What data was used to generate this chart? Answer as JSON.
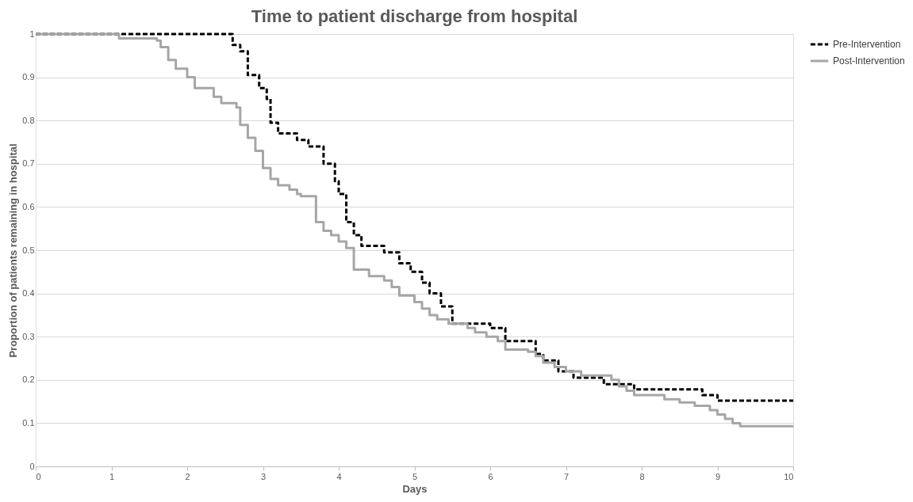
{
  "chart_data": {
    "type": "step",
    "title": "Time to patient discharge from hospital",
    "xlabel": "Days",
    "ylabel": "Proportion of patients remaining in hospital",
    "xlim": [
      0,
      10
    ],
    "xticks": [
      0,
      1,
      2,
      3,
      4,
      5,
      6,
      7,
      8,
      9,
      10
    ],
    "ylim": [
      0,
      1
    ],
    "yticks": [
      0,
      0.1,
      0.2,
      0.3,
      0.4,
      0.5,
      0.6,
      0.7,
      0.8,
      0.9,
      1
    ],
    "grid": "y",
    "legend": "right",
    "marker": "none",
    "series": [
      {
        "name": "Pre-Intervention",
        "color": "#000000",
        "line_style": "dashed",
        "x": [
          0,
          2.6,
          2.7,
          2.8,
          2.95,
          3.05,
          3.1,
          3.2,
          3.45,
          3.6,
          3.8,
          3.95,
          4.0,
          4.1,
          4.2,
          4.3,
          4.6,
          4.8,
          4.95,
          5.1,
          5.2,
          5.35,
          5.5,
          6.0,
          6.2,
          6.6,
          6.7,
          6.9,
          7.1,
          7.5,
          7.9,
          8.8,
          9.0,
          10
        ],
        "values": [
          1,
          0.975,
          0.96,
          0.905,
          0.875,
          0.85,
          0.795,
          0.77,
          0.755,
          0.74,
          0.7,
          0.66,
          0.63,
          0.565,
          0.535,
          0.51,
          0.495,
          0.47,
          0.45,
          0.425,
          0.4,
          0.37,
          0.33,
          0.32,
          0.29,
          0.26,
          0.245,
          0.22,
          0.205,
          0.19,
          0.178,
          0.165,
          0.152,
          0.152
        ]
      },
      {
        "name": "Post-Intervention",
        "color": "#a6a6a6",
        "line_style": "solid",
        "x": [
          0,
          1.1,
          1.6,
          1.65,
          1.75,
          1.85,
          2.0,
          2.1,
          2.35,
          2.45,
          2.65,
          2.7,
          2.8,
          2.9,
          3.0,
          3.1,
          3.2,
          3.35,
          3.45,
          3.5,
          3.7,
          3.8,
          3.9,
          4.0,
          4.1,
          4.2,
          4.4,
          4.6,
          4.7,
          4.8,
          5.0,
          5.1,
          5.2,
          5.3,
          5.45,
          5.7,
          5.8,
          5.95,
          6.1,
          6.2,
          6.5,
          6.6,
          6.7,
          6.85,
          7.0,
          7.2,
          7.6,
          7.7,
          7.8,
          7.9,
          8.3,
          8.5,
          8.7,
          8.9,
          9.0,
          9.1,
          9.2,
          9.3,
          10
        ],
        "values": [
          1,
          0.99,
          0.985,
          0.97,
          0.94,
          0.92,
          0.9,
          0.875,
          0.855,
          0.84,
          0.83,
          0.79,
          0.76,
          0.73,
          0.69,
          0.665,
          0.65,
          0.64,
          0.63,
          0.625,
          0.565,
          0.545,
          0.535,
          0.52,
          0.505,
          0.455,
          0.44,
          0.43,
          0.415,
          0.395,
          0.38,
          0.365,
          0.35,
          0.34,
          0.33,
          0.32,
          0.31,
          0.3,
          0.29,
          0.27,
          0.265,
          0.255,
          0.24,
          0.23,
          0.22,
          0.21,
          0.2,
          0.185,
          0.175,
          0.165,
          0.155,
          0.148,
          0.14,
          0.13,
          0.12,
          0.11,
          0.1,
          0.093,
          0.093
        ]
      }
    ]
  }
}
